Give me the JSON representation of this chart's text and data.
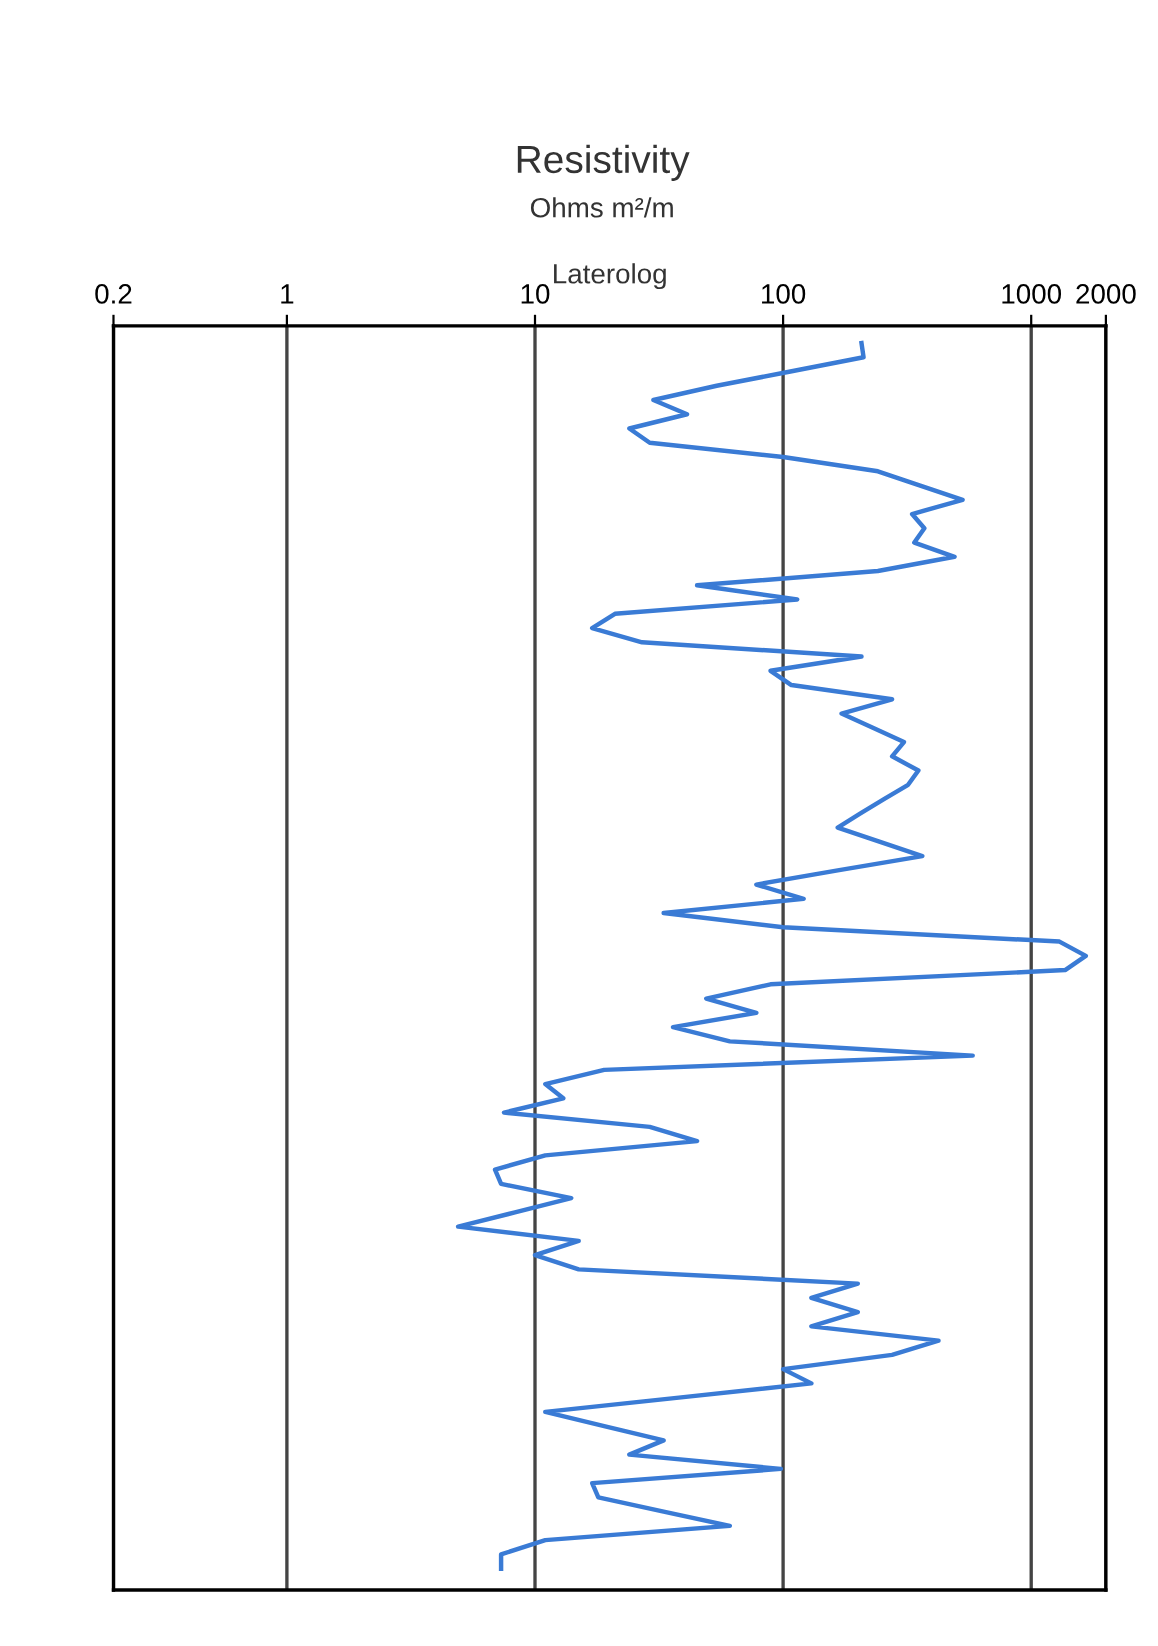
{
  "chart_data": {
    "type": "line",
    "title": "Resistivity",
    "subtitle": "Ohms m²/m",
    "xlabel": "Laterolog",
    "orientation": "horizontal",
    "xlim": [
      0.2,
      2000
    ],
    "xticks": [
      0.2,
      1,
      10,
      100,
      1000,
      2000
    ],
    "log": "x",
    "grid": "x",
    "categories": [
      null,
      null,
      null,
      null,
      null,
      null,
      null,
      null,
      null,
      null,
      null,
      null,
      null,
      null,
      null,
      null,
      null,
      null,
      null,
      null,
      null,
      null,
      null,
      null,
      null,
      null,
      null,
      null,
      null,
      null,
      null,
      null,
      null,
      null,
      null,
      null,
      null,
      null,
      null,
      null,
      null,
      null,
      null,
      null,
      null,
      null,
      null,
      null,
      null,
      null,
      null,
      null,
      null,
      null,
      null,
      null,
      null,
      null,
      null,
      null,
      null,
      null,
      null,
      null,
      null,
      null,
      null,
      null,
      null,
      null,
      null,
      null,
      null,
      null,
      null,
      null,
      null,
      null,
      null,
      null,
      null,
      null,
      null,
      null,
      null,
      null,
      null
    ],
    "series": [
      {
        "color": "#3a7bd5",
        "values": [
          207,
          211,
          107,
          54,
          30,
          41,
          24,
          29,
          100,
          241,
          357,
          529,
          331,
          371,
          338,
          491,
          241,
          45,
          114,
          21,
          17,
          27,
          207,
          89,
          108,
          275,
          172,
          230,
          307,
          275,
          351,
          319,
          255,
          205,
          166,
          246,
          364,
          166,
          78,
          121,
          33,
          100,
          1300,
          1660,
          1370,
          89,
          49,
          78,
          36,
          61,
          581,
          19,
          11,
          13,
          7.5,
          29,
          45,
          11,
          6.9,
          7.3,
          14,
          8.3,
          4.9,
          15,
          10,
          15,
          200,
          130,
          200,
          130,
          423,
          275,
          100,
          130,
          38,
          11,
          19,
          33,
          24,
          98,
          17,
          18,
          33,
          61,
          11,
          7.3,
          7.3
        ]
      }
    ]
  }
}
